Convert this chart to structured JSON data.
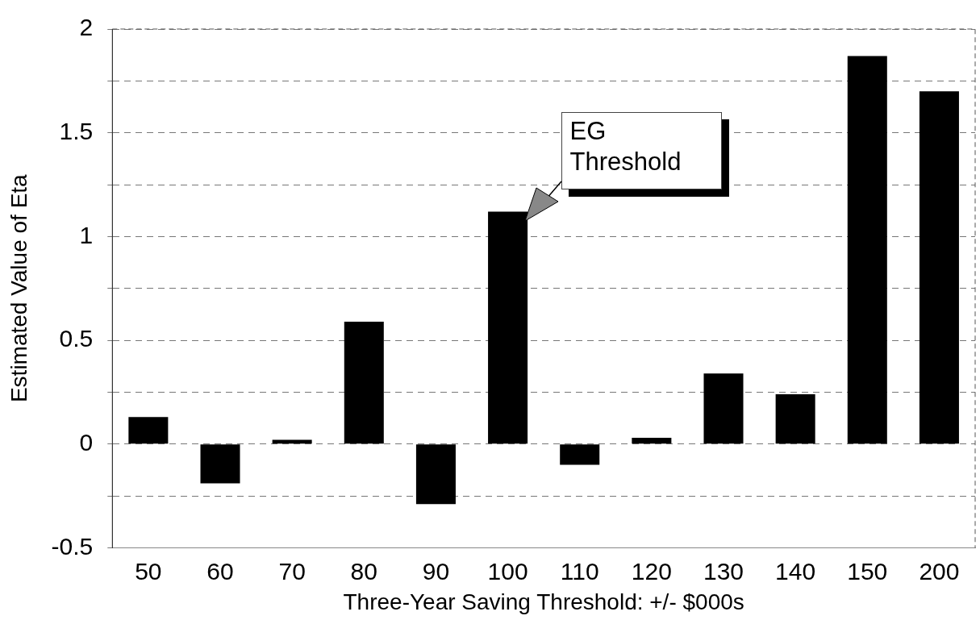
{
  "chart_data": {
    "type": "bar",
    "xlabel": "Three-Year Saving Threshold: +/- $000s",
    "ylabel": "Estimated Value of Eta",
    "categories": [
      "50",
      "60",
      "70",
      "80",
      "90",
      "100",
      "110",
      "120",
      "130",
      "140",
      "150",
      "200"
    ],
    "values": [
      0.13,
      -0.19,
      0.02,
      0.59,
      -0.29,
      1.12,
      -0.1,
      0.03,
      0.34,
      0.24,
      1.87,
      1.7
    ],
    "color": "#000000",
    "ylim": [
      -0.5,
      2
    ],
    "yticks": [
      -0.5,
      {
        "value": -0.25,
        "label": null
      },
      0,
      {
        "value": 0.25,
        "label": null
      },
      0.5,
      {
        "value": 0.75,
        "label": null
      },
      1,
      {
        "value": 1.25,
        "label": null
      },
      1.5,
      {
        "value": 1.75,
        "label": null
      },
      2
    ],
    "grid": "y",
    "annotations": [
      "EG Threshold"
    ]
  }
}
